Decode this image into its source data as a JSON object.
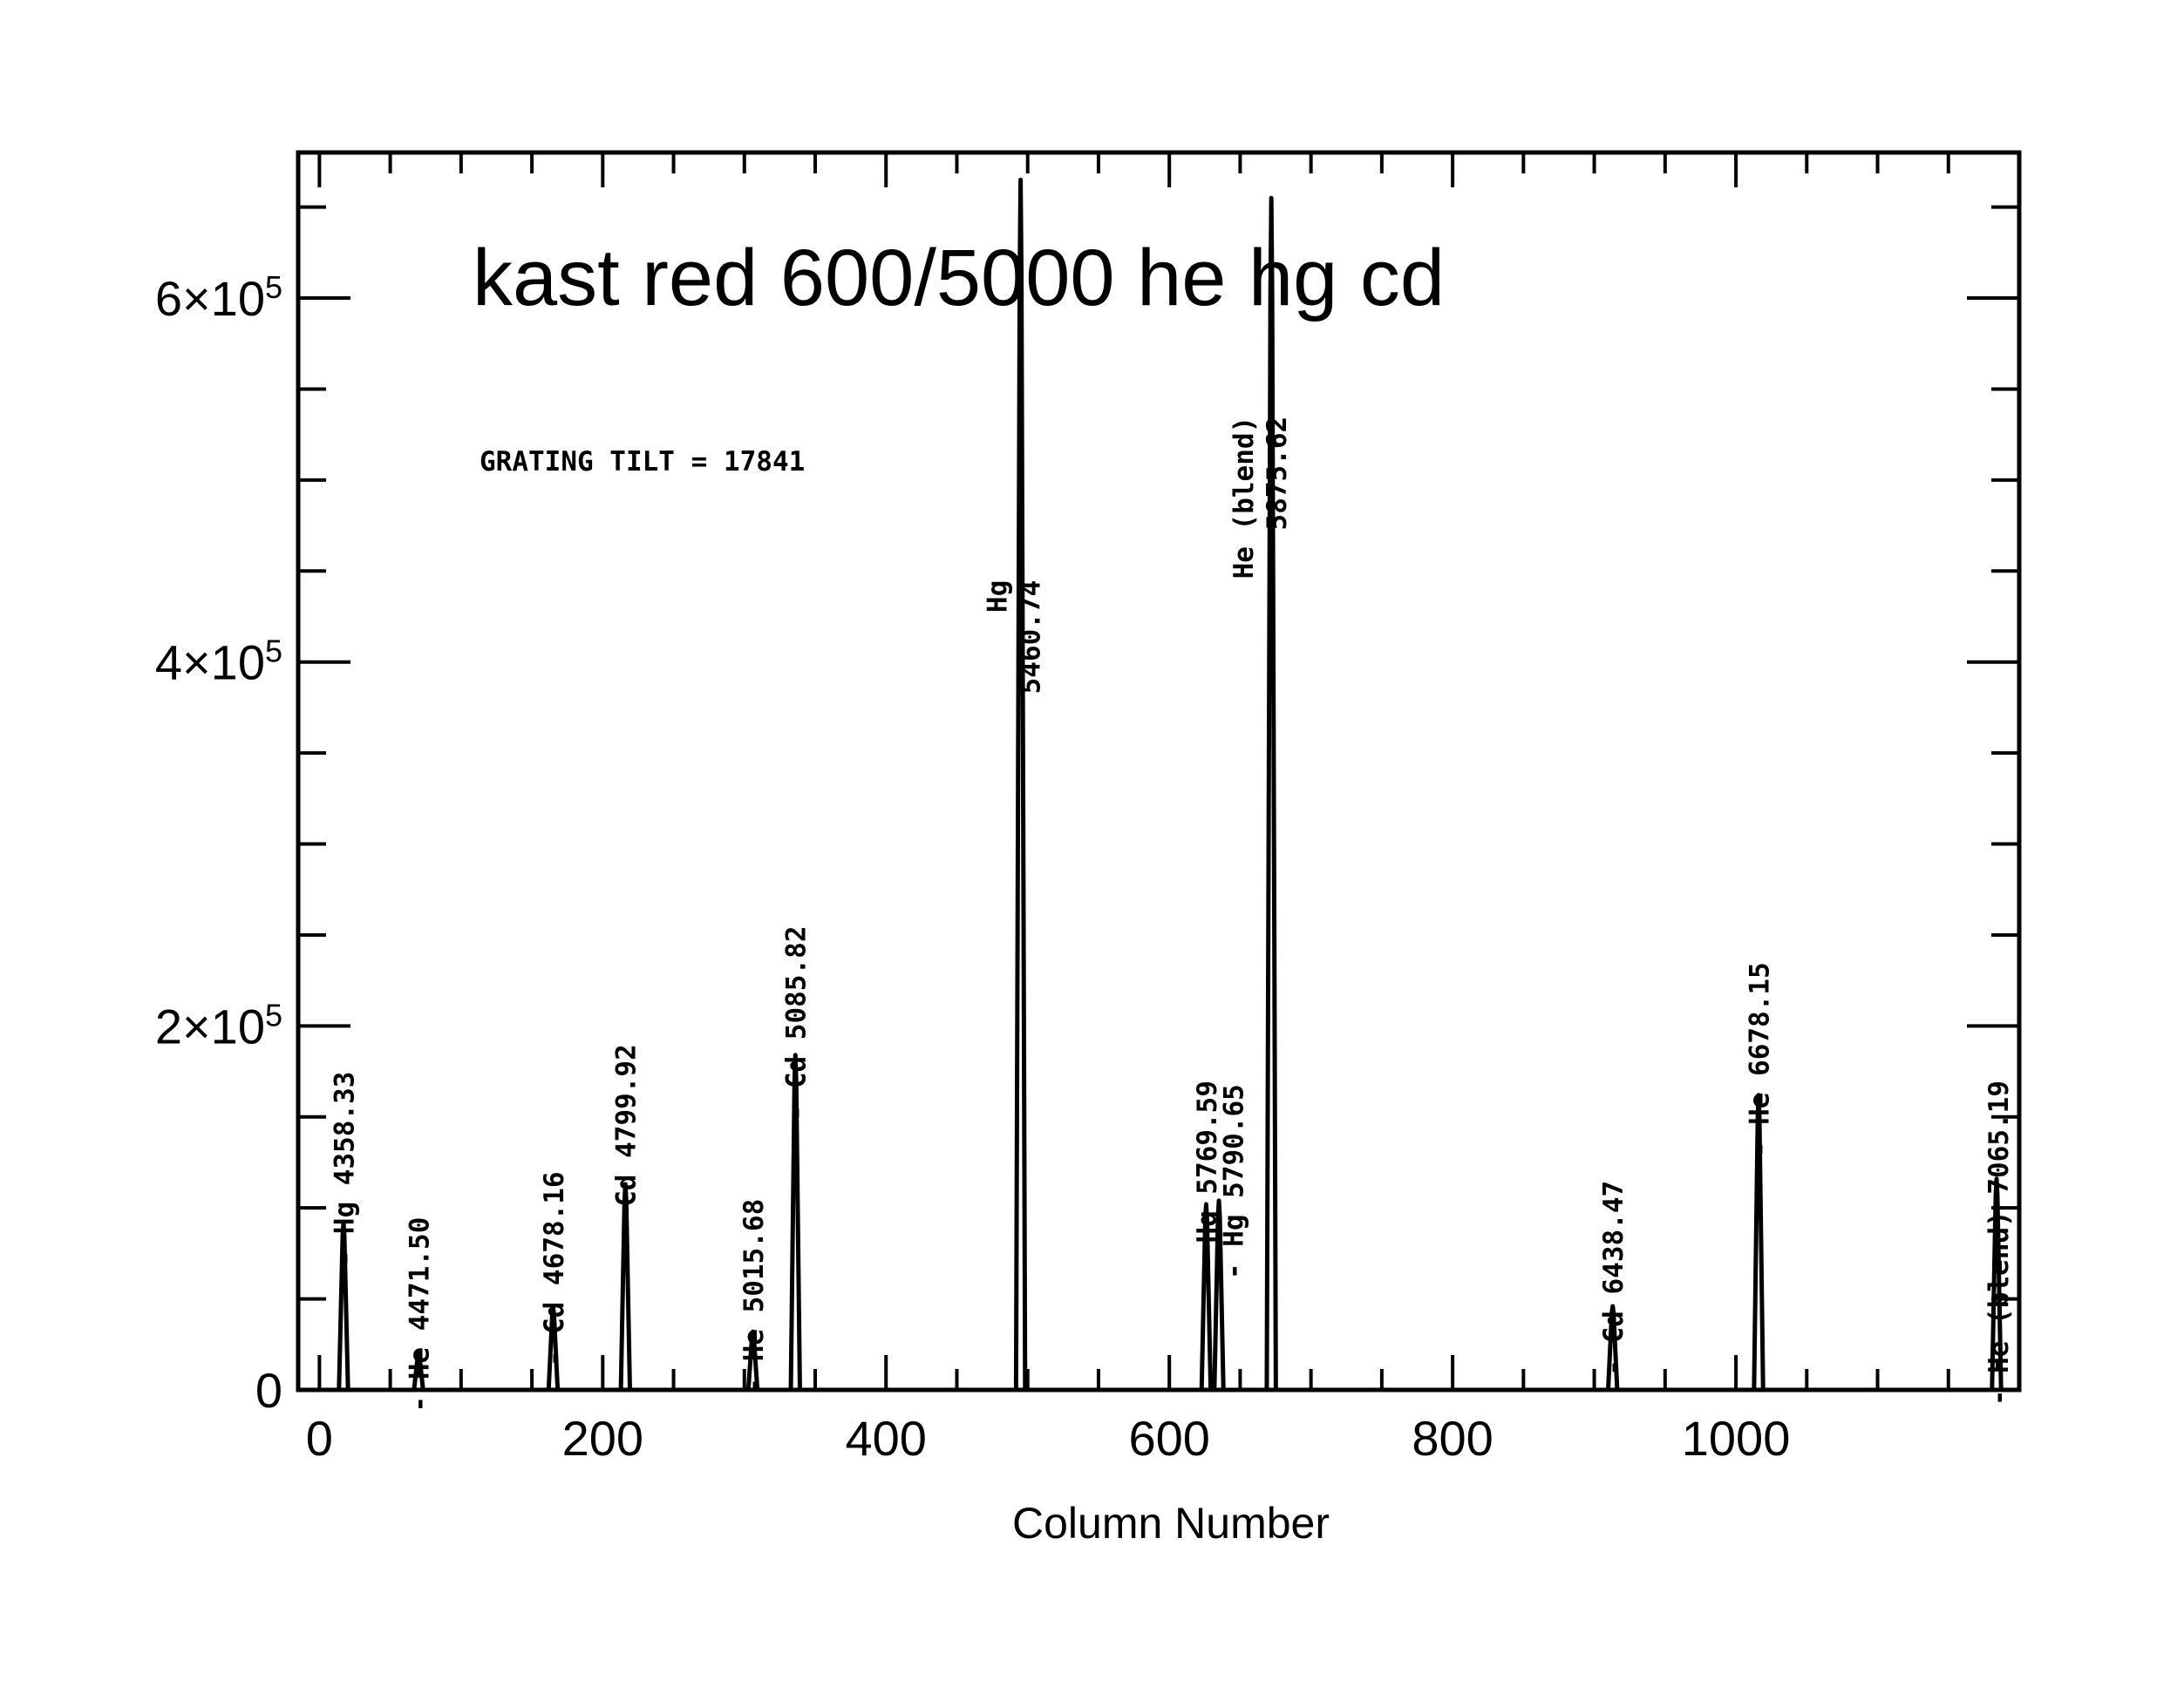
{
  "chart_data": {
    "type": "line",
    "title": "kast red 600/5000 he hg cd",
    "xlabel": "Column Number",
    "ylabel": "",
    "xlim": [
      -15,
      1200
    ],
    "ylim": [
      0,
      680000
    ],
    "xticks": [
      0,
      200,
      400,
      600,
      800,
      1000
    ],
    "xtick_labels": [
      "0",
      "200",
      "400",
      "600",
      "800",
      "1000"
    ],
    "yticks": [
      0,
      200000,
      400000,
      600000
    ],
    "ytick_labels": [
      {
        "mantissa": "0",
        "exponent": ""
      },
      {
        "mantissa": "2×10",
        "exponent": "5"
      },
      {
        "mantissa": "4×10",
        "exponent": "5"
      },
      {
        "mantissa": "6×10",
        "exponent": "5"
      }
    ],
    "annotation": "GRATING TILT = 17841",
    "grid": false,
    "series": [
      {
        "peaks": [
          {
            "x": 17,
            "y": 92000
          },
          {
            "x": 70,
            "y": 20000
          },
          {
            "x": 165,
            "y": 45000
          },
          {
            "x": 216,
            "y": 113000
          },
          {
            "x": 306,
            "y": 32000
          },
          {
            "x": 336,
            "y": 184000
          },
          {
            "x": 495,
            "y": 665000
          },
          {
            "x": 626,
            "y": 102000
          },
          {
            "x": 635,
            "y": 104000
          },
          {
            "x": 672,
            "y": 655000
          },
          {
            "x": 913,
            "y": 46000
          },
          {
            "x": 1016,
            "y": 162000
          },
          {
            "x": 1184,
            "y": 116000
          }
        ]
      }
    ],
    "line_labels": [
      {
        "x": 24,
        "y_top": 175000,
        "text": "- Hg 4358.33"
      },
      {
        "x": 77,
        "y_top": 95000,
        "text": "- He 4471.50"
      },
      {
        "x": 172,
        "y_top": 120000,
        "text": "- Cd 4678.16"
      },
      {
        "x": 223,
        "y_top": 190000,
        "text": "- Cd 4799.92"
      },
      {
        "x": 313,
        "y_top": 105000,
        "text": "- He 5015.68"
      },
      {
        "x": 343,
        "y_top": 255000,
        "text": "- Cd 5085.82"
      },
      {
        "x": 633,
        "y_top": 170000,
        "text": "- Hg 5769.59"
      },
      {
        "x": 652,
        "y_top": 168000,
        "text": "- Hg 5790.65"
      },
      {
        "x": 920,
        "y_top": 115000,
        "text": "- Cd 6438.47"
      },
      {
        "x": 1023,
        "y_top": 235000,
        "text": "- He 6678.15"
      },
      {
        "x": 1192,
        "y_top": 170000,
        "text": "- He (blend) 7065.19"
      }
    ],
    "stacked_labels": [
      {
        "x": 485,
        "y_top": 445000,
        "lines": [
          "Hg",
          "5460.74"
        ]
      },
      {
        "x": 659,
        "y_top": 535000,
        "lines": [
          "He (blend)",
          "5875.62"
        ]
      }
    ]
  }
}
